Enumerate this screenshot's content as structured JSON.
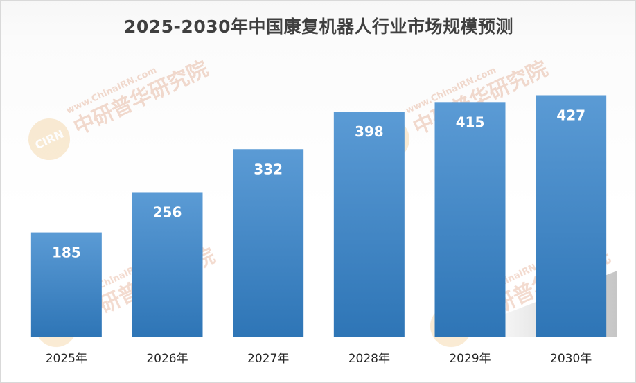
{
  "chart_data": {
    "type": "bar",
    "title": "2025-2030年中国康复机器人行业市场规模预测",
    "xlabel": "",
    "ylabel": "",
    "categories": [
      "2025年",
      "2026年",
      "2027年",
      "2028年",
      "2029年",
      "2030年"
    ],
    "values": [
      185,
      256,
      332,
      398,
      415,
      427
    ],
    "ylim": [
      0,
      500
    ],
    "grid": false,
    "legend": "none",
    "colors": {
      "bar_light": "#5b9bd5",
      "bar_dark": "#2e75b6",
      "label": "#ffffff",
      "title": "#404040"
    }
  },
  "watermark": {
    "url_text": "www.ChinaIRN.com",
    "brand_text": "中研普华研究院",
    "logo_text": "CIRN"
  }
}
